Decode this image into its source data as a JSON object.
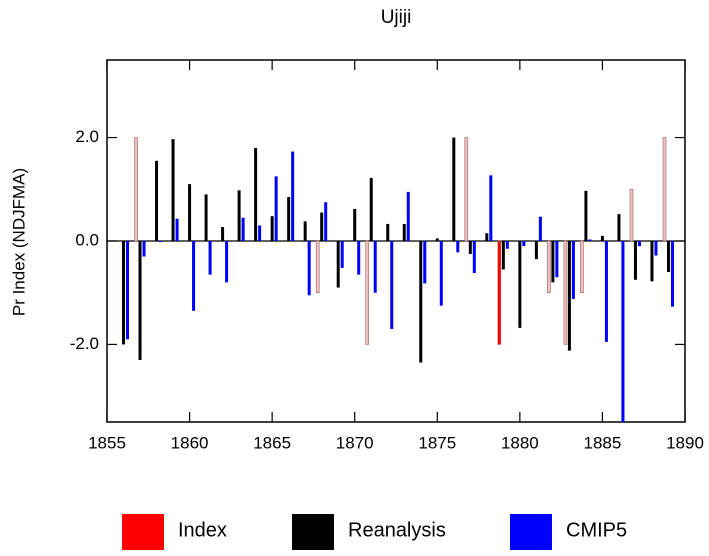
{
  "chart_data": {
    "type": "bar",
    "title": "Ujiji",
    "y_label": "Pr Index (NDJFMA)",
    "x": [
      1856,
      1857,
      1858,
      1859,
      1860,
      1861,
      1862,
      1863,
      1864,
      1865,
      1866,
      1867,
      1868,
      1869,
      1870,
      1871,
      1872,
      1873,
      1874,
      1875,
      1876,
      1877,
      1878,
      1879,
      1880,
      1881,
      1882,
      1883,
      1884,
      1885,
      1886,
      1887,
      1888,
      1889
    ],
    "series": [
      {
        "name": "Index",
        "color": "#ff0000",
        "bar_colors": [
          "#f0c0c0",
          "#f0c0c0",
          "#f0c0c0",
          "#f0c0c0",
          "#f0c0c0",
          "#f0c0c0",
          "#f0c0c0",
          "#f0c0c0",
          "#f0c0c0",
          "#f0c0c0",
          "#f0c0c0",
          "#f0c0c0",
          "#f0c0c0",
          "#f0c0c0",
          "#f0c0c0",
          "#f0c0c0",
          "#f0c0c0",
          "#f0c0c0",
          "#f0c0c0",
          "#f0c0c0",
          "#f0c0c0",
          "#f0c0c0",
          "#f0c0c0",
          "#ff0000",
          "#f0c0c0",
          "#f0c0c0",
          "#f0c0c0",
          "#f0c0c0",
          "#f0c0c0",
          "#f0c0c0",
          "#f0c0c0",
          "#f0c0c0",
          "#f0c0c0",
          "#f0c0c0"
        ],
        "values": [
          null,
          2.0,
          null,
          null,
          null,
          null,
          null,
          null,
          null,
          null,
          null,
          null,
          -1.0,
          null,
          null,
          -2.0,
          null,
          null,
          null,
          null,
          null,
          2.0,
          null,
          -2.0,
          null,
          null,
          -1.0,
          -2.0,
          -1.0,
          null,
          null,
          1.0,
          null,
          2.0
        ]
      },
      {
        "name": "Reanalysis",
        "color": "#000000",
        "values": [
          -2.0,
          -2.3,
          1.55,
          1.97,
          1.1,
          0.9,
          0.27,
          0.98,
          1.8,
          0.48,
          0.85,
          0.38,
          0.55,
          -0.9,
          0.62,
          1.22,
          0.33,
          0.33,
          -2.35,
          0.05,
          2.0,
          -0.25,
          0.15,
          -0.55,
          -1.68,
          -0.35,
          -0.8,
          -2.12,
          0.97,
          0.1,
          0.52,
          -0.75,
          -0.78,
          -0.6
        ]
      },
      {
        "name": "CMIP5",
        "color": "#0000ff",
        "values": [
          -1.9,
          -0.3,
          -0.02,
          0.43,
          -1.35,
          -0.65,
          -0.8,
          0.45,
          0.3,
          1.25,
          1.73,
          -1.05,
          0.75,
          -0.52,
          -0.65,
          -1.0,
          -1.7,
          0.95,
          -0.82,
          -1.25,
          -0.22,
          -0.62,
          1.27,
          -0.15,
          -0.1,
          0.47,
          -0.7,
          -1.12,
          0.03,
          -1.95,
          -3.5,
          -0.1,
          -0.28,
          -1.27
        ]
      }
    ],
    "xlim": [
      1855,
      1890
    ],
    "xticks": [
      1855,
      1860,
      1865,
      1870,
      1875,
      1880,
      1885,
      1890
    ],
    "ylim": [
      -3.5,
      3.5
    ],
    "yticks": [
      {
        "value": -2,
        "label": "-2.0"
      },
      {
        "value": 0,
        "label": "0.0"
      },
      {
        "value": 2,
        "label": "2.0"
      }
    ],
    "legend": "bottom"
  }
}
